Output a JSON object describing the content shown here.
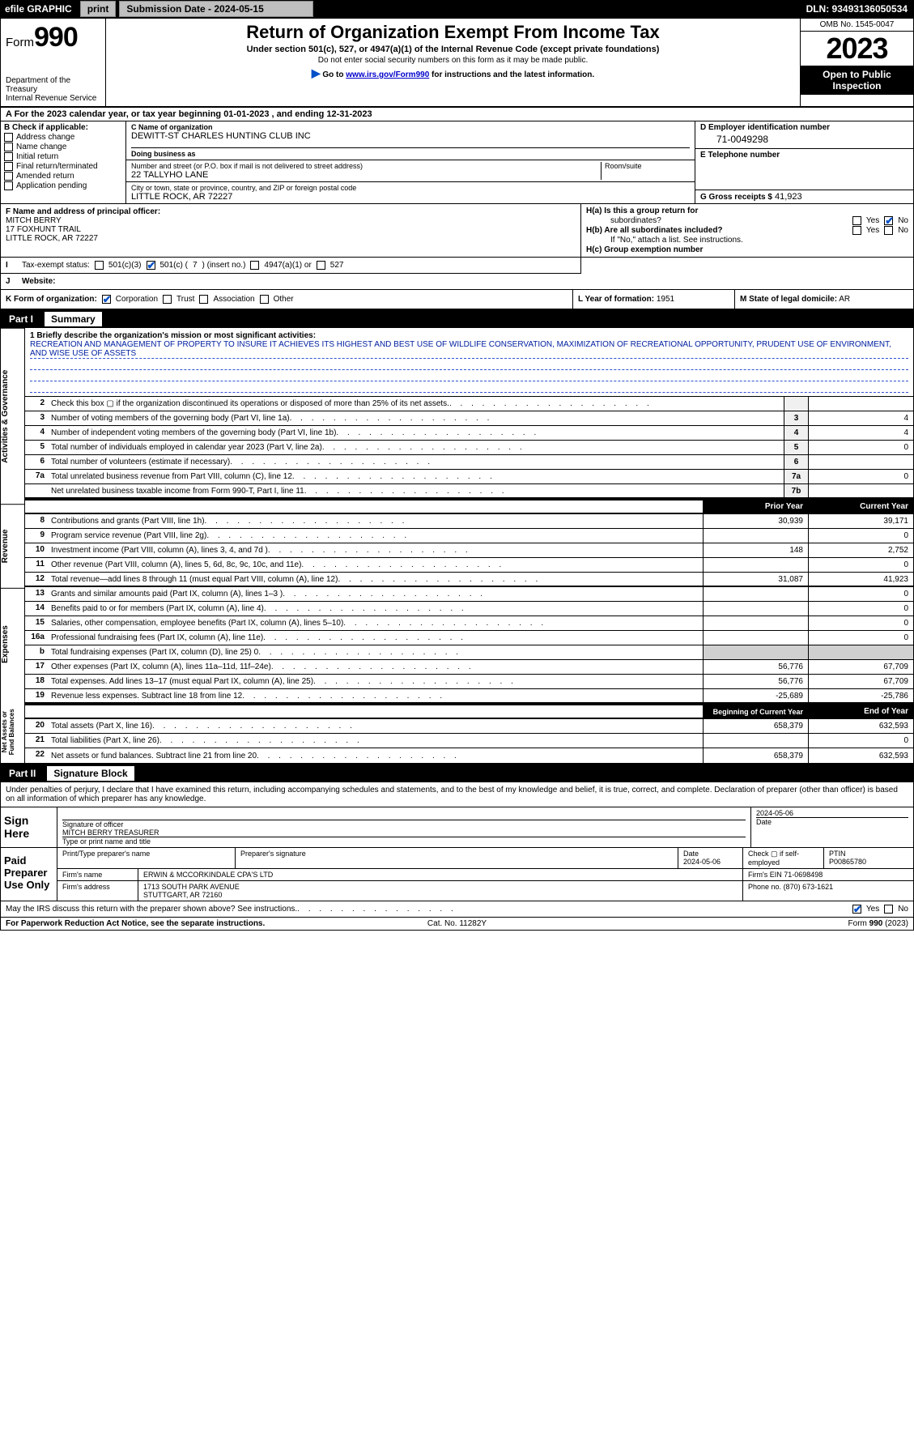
{
  "topbar": {
    "efile": "efile GRAPHIC",
    "print": "print",
    "sub_lbl": "Submission Date - 2024-05-15",
    "dln": "DLN: 93493136050534"
  },
  "header": {
    "form_prefix": "Form",
    "form_no": "990",
    "dept": "Department of the Treasury",
    "irs": "Internal Revenue Service",
    "title": "Return of Organization Exempt From Income Tax",
    "sub1": "Under section 501(c), 527, or 4947(a)(1) of the Internal Revenue Code (except private foundations)",
    "sub2": "Do not enter social security numbers on this form as it may be made public.",
    "sub3_a": "Go to ",
    "sub3_link": "www.irs.gov/Form990",
    "sub3_b": " for instructions and the latest information.",
    "omb": "OMB No. 1545-0047",
    "year": "2023",
    "open": "Open to Public Inspection"
  },
  "row_a": "A For the 2023 calendar year, or tax year beginning 01-01-2023   , and ending 12-31-2023",
  "box_b": {
    "title": "B Check if applicable:",
    "opts": [
      "Address change",
      "Name change",
      "Initial return",
      "Final return/terminated",
      "Amended return",
      "Application pending"
    ]
  },
  "box_c": {
    "name_lbl": "C Name of organization",
    "name": "DEWITT-ST CHARLES HUNTING CLUB INC",
    "dba_lbl": "Doing business as",
    "dba": "",
    "addr_lbl": "Number and street (or P.O. box if mail is not delivered to street address)",
    "addr": "22 TALLYHO LANE",
    "room_lbl": "Room/suite",
    "city_lbl": "City or town, state or province, country, and ZIP or foreign postal code",
    "city": "LITTLE ROCK, AR  72227"
  },
  "box_d": {
    "lbl": "D Employer identification number",
    "val": "71-0049298"
  },
  "box_e": {
    "lbl": "E Telephone number",
    "val": ""
  },
  "box_g": {
    "lbl": "G Gross receipts $",
    "val": "41,923"
  },
  "box_f": {
    "lbl": "F  Name and address of principal officer:",
    "name": "MITCH BERRY",
    "addr": "17 FOXHUNT TRAIL",
    "city": "LITTLE ROCK, AR  72227"
  },
  "box_h": {
    "a_lbl": "H(a)  Is this a group return for",
    "a_lbl2": "subordinates?",
    "b_lbl": "H(b)  Are all subordinates included?",
    "note": "If \"No,\" attach a list. See instructions.",
    "c_lbl": "H(c)  Group exemption number",
    "yes": "Yes",
    "no": "No"
  },
  "box_i": {
    "lbl": "Tax-exempt status:",
    "o1": "501(c)(3)",
    "o2": "501(c) (",
    "o2v": "7",
    "o2b": ") (insert no.)",
    "o3": "4947(a)(1) or",
    "o4": "527"
  },
  "box_j": {
    "ltr": "J",
    "lbl": "Website:",
    "val": ""
  },
  "box_k": {
    "lbl": "K Form of organization:",
    "o1": "Corporation",
    "o2": "Trust",
    "o3": "Association",
    "o4": "Other"
  },
  "box_l": {
    "lbl": "L Year of formation:",
    "val": "1951"
  },
  "box_m": {
    "lbl": "M State of legal domicile:",
    "val": "AR"
  },
  "part1": {
    "num": "Part I",
    "title": "Summary"
  },
  "vtabs": [
    "Activities & Governance",
    "Revenue",
    "Expenses",
    "Net Assets or Fund Balances"
  ],
  "mission": {
    "lbl": "1  Briefly describe the organization's mission or most significant activities:",
    "text": "RECREATION AND MANAGEMENT OF PROPERTY TO INSURE IT ACHIEVES ITS HIGHEST AND BEST USE OF WILDLIFE CONSERVATION, MAXIMIZATION OF RECREATIONAL OPPORTUNITY, PRUDENT USE OF ENVIRONMENT, AND WISE USE OF ASSETS"
  },
  "lines_gov": [
    {
      "n": "2",
      "d": "Check this box ▢ if the organization discontinued its operations or disposed of more than 25% of its net assets.",
      "c": "",
      "v": ""
    },
    {
      "n": "3",
      "d": "Number of voting members of the governing body (Part VI, line 1a)",
      "c": "3",
      "v": "4"
    },
    {
      "n": "4",
      "d": "Number of independent voting members of the governing body (Part VI, line 1b)",
      "c": "4",
      "v": "4"
    },
    {
      "n": "5",
      "d": "Total number of individuals employed in calendar year 2023 (Part V, line 2a)",
      "c": "5",
      "v": "0"
    },
    {
      "n": "6",
      "d": "Total number of volunteers (estimate if necessary)",
      "c": "6",
      "v": ""
    },
    {
      "n": "7a",
      "d": "Total unrelated business revenue from Part VIII, column (C), line 12",
      "c": "7a",
      "v": "0"
    },
    {
      "n": "",
      "d": "Net unrelated business taxable income from Form 990-T, Part I, line 11",
      "c": "7b",
      "v": ""
    }
  ],
  "colhdr": {
    "prior": "Prior Year",
    "curr": "Current Year",
    "beg": "Beginning of Current Year",
    "end": "End of Year"
  },
  "lines_rev": [
    {
      "n": "8",
      "d": "Contributions and grants (Part VIII, line 1h)",
      "p": "30,939",
      "c": "39,171"
    },
    {
      "n": "9",
      "d": "Program service revenue (Part VIII, line 2g)",
      "p": "",
      "c": "0"
    },
    {
      "n": "10",
      "d": "Investment income (Part VIII, column (A), lines 3, 4, and 7d )",
      "p": "148",
      "c": "2,752"
    },
    {
      "n": "11",
      "d": "Other revenue (Part VIII, column (A), lines 5, 6d, 8c, 9c, 10c, and 11e)",
      "p": "",
      "c": "0"
    },
    {
      "n": "12",
      "d": "Total revenue—add lines 8 through 11 (must equal Part VIII, column (A), line 12)",
      "p": "31,087",
      "c": "41,923"
    }
  ],
  "lines_exp": [
    {
      "n": "13",
      "d": "Grants and similar amounts paid (Part IX, column (A), lines 1–3 )",
      "p": "",
      "c": "0"
    },
    {
      "n": "14",
      "d": "Benefits paid to or for members (Part IX, column (A), line 4)",
      "p": "",
      "c": "0"
    },
    {
      "n": "15",
      "d": "Salaries, other compensation, employee benefits (Part IX, column (A), lines 5–10)",
      "p": "",
      "c": "0"
    },
    {
      "n": "16a",
      "d": "Professional fundraising fees (Part IX, column (A), line 11e)",
      "p": "",
      "c": "0"
    },
    {
      "n": "b",
      "d": "Total fundraising expenses (Part IX, column (D), line 25) 0",
      "p": "GREY",
      "c": "GREY"
    },
    {
      "n": "17",
      "d": "Other expenses (Part IX, column (A), lines 11a–11d, 11f–24e)",
      "p": "56,776",
      "c": "67,709"
    },
    {
      "n": "18",
      "d": "Total expenses. Add lines 13–17 (must equal Part IX, column (A), line 25)",
      "p": "56,776",
      "c": "67,709"
    },
    {
      "n": "19",
      "d": "Revenue less expenses. Subtract line 18 from line 12",
      "p": "-25,689",
      "c": "-25,786"
    }
  ],
  "lines_net": [
    {
      "n": "20",
      "d": "Total assets (Part X, line 16)",
      "p": "658,379",
      "c": "632,593"
    },
    {
      "n": "21",
      "d": "Total liabilities (Part X, line 26)",
      "p": "",
      "c": "0"
    },
    {
      "n": "22",
      "d": "Net assets or fund balances. Subtract line 21 from line 20",
      "p": "658,379",
      "c": "632,593"
    }
  ],
  "part2": {
    "num": "Part II",
    "title": "Signature Block"
  },
  "sig_intro": "Under penalties of perjury, I declare that I have examined this return, including accompanying schedules and statements, and to the best of my knowledge and belief, it is true, correct, and complete. Declaration of preparer (other than officer) is based on all information of which preparer has any knowledge.",
  "sign_here": "Sign Here",
  "sig": {
    "sig_lbl": "Signature of officer",
    "name": "MITCH BERRY TREASURER",
    "name_lbl": "Type or print name and title",
    "date": "2024-05-06",
    "date_lbl": "Date"
  },
  "paid": {
    "lbl": "Paid Preparer Use Only",
    "pname_lbl": "Print/Type preparer's name",
    "pname": "",
    "psig_lbl": "Preparer's signature",
    "pdate_lbl": "Date",
    "pdate": "2024-05-06",
    "pse_lbl": "Check ▢ if self-employed",
    "ptin_lbl": "PTIN",
    "ptin": "P00865780",
    "firm_lbl": "Firm's name",
    "firm": "ERWIN & MCCORKINDALE CPA'S LTD",
    "fein_lbl": "Firm's EIN",
    "fein": "71-0698498",
    "faddr_lbl": "Firm's address",
    "faddr": "1713 SOUTH PARK AVENUE",
    "fcity": "STUTTGART, AR  72160",
    "fphone_lbl": "Phone no.",
    "fphone": "(870) 673-1621"
  },
  "may_discuss": "May the IRS discuss this return with the preparer shown above? See instructions.",
  "footer": {
    "left": "For Paperwork Reduction Act Notice, see the separate instructions.",
    "mid": "Cat. No. 11282Y",
    "right": "Form 990 (2023)"
  }
}
